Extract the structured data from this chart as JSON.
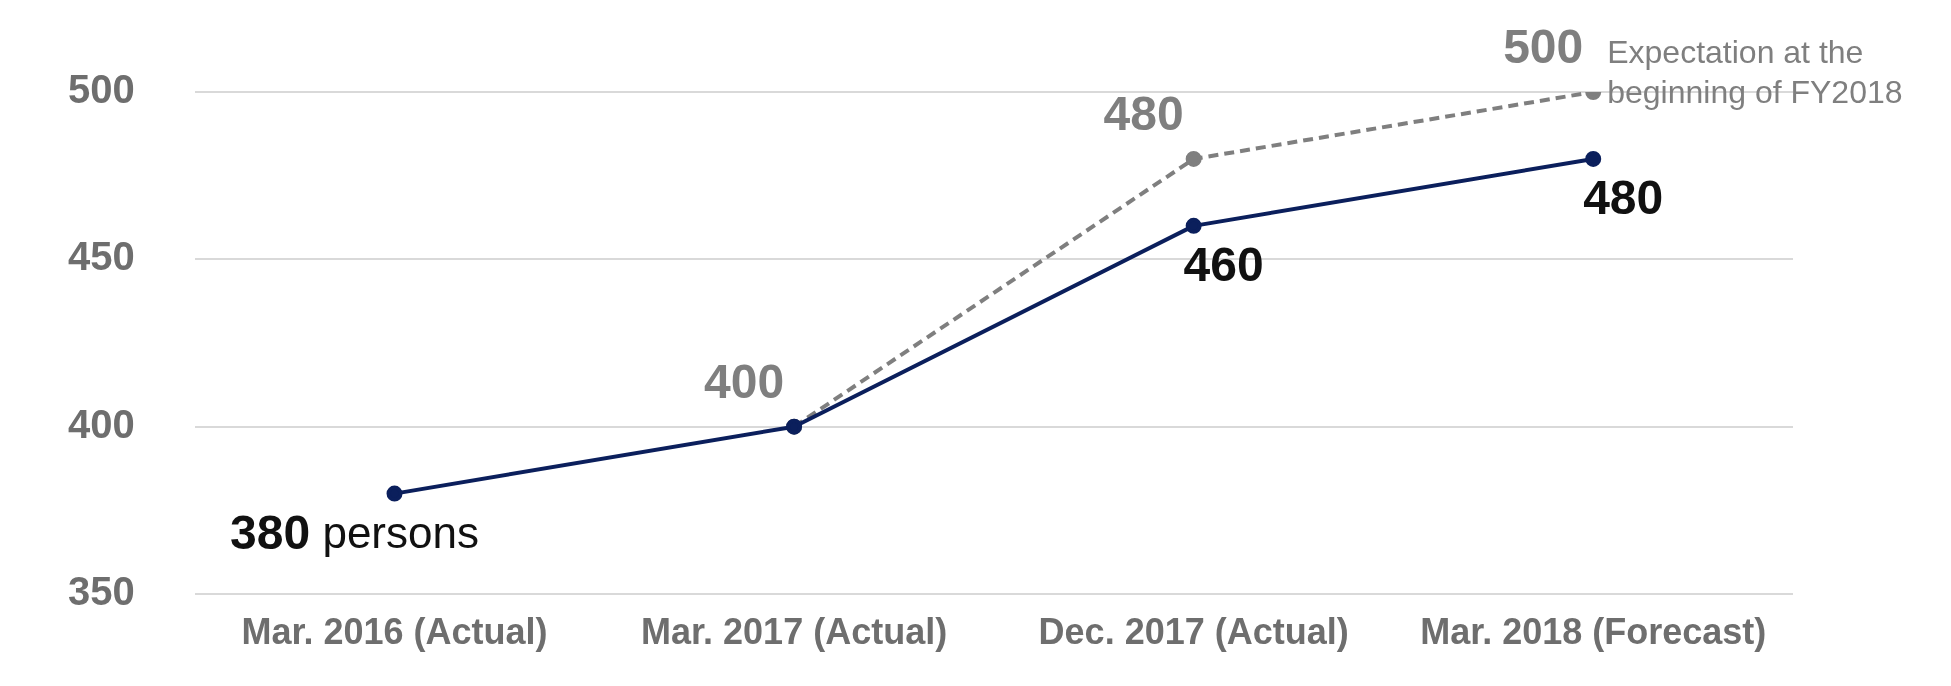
{
  "chart_data": {
    "type": "line",
    "categories": [
      "Mar. 2016 (Actual)",
      "Mar. 2017 (Actual)",
      "Dec. 2017 (Actual)",
      "Mar. 2018 (Forecast)"
    ],
    "series": [
      {
        "color": "#0b1f5c",
        "values": [
          380,
          400,
          460,
          480
        ],
        "value_labels": [
          "380 persons",
          null,
          "460",
          "480"
        ],
        "line_style": "solid"
      },
      {
        "name": "Expectation at the beginning of FY2018",
        "color": "#7f7f7f",
        "values": [
          null,
          400,
          480,
          500
        ],
        "value_labels": [
          null,
          "400",
          "480",
          "500"
        ],
        "line_style": "dashed"
      }
    ],
    "ylim": [
      350,
      500
    ],
    "yticks": [
      350,
      400,
      450,
      500
    ],
    "grid": "y",
    "marker": "circle",
    "legend": false
  }
}
